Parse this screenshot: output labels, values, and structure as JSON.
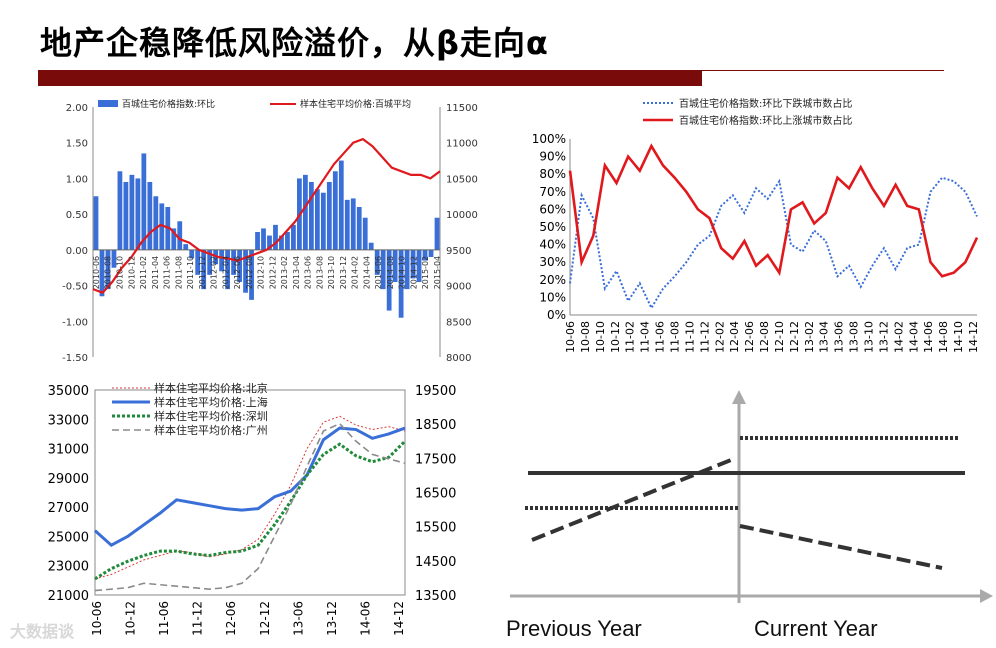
{
  "page": {
    "title": "地产企稳降低风险溢价，从β走向α",
    "watermark": "大数据谈"
  },
  "colors": {
    "accent": "#7a0b0b",
    "blue": "#3a6fd8",
    "red": "#e0191d",
    "green": "#1f8a3a",
    "gray": "#8a8a8a"
  },
  "chart_data": [
    {
      "type": "bar+line",
      "title": "",
      "legend": [
        "百城住宅价格指数:环比",
        "样本住宅平均价格:百城平均"
      ],
      "left_axis": {
        "ticks": [
          "2.00",
          "1.50",
          "1.00",
          "0.50",
          "0.00",
          "-0.50",
          "-1.00",
          "-1.50"
        ],
        "range": [
          -1.5,
          2.0
        ]
      },
      "right_axis": {
        "ticks": [
          "11500",
          "11000",
          "10500",
          "10000",
          "9500",
          "9000",
          "8500",
          "8000"
        ],
        "range": [
          8000,
          11500
        ]
      },
      "x_ticks": [
        "2010-06",
        "2010-08",
        "2010-10",
        "2010-12",
        "2011-02",
        "2011-04",
        "2011-06",
        "2011-08",
        "2011-10",
        "2011-12",
        "2012-02",
        "2012-04",
        "2012-06",
        "2012-08",
        "2012-10",
        "2012-12",
        "2013-02",
        "2013-04",
        "2013-06",
        "2013-08",
        "2013-10",
        "2013-12",
        "2014-02",
        "2014-04",
        "2014-06",
        "2014-08",
        "2014-10",
        "2014-12",
        "2015-02",
        "2015-04"
      ],
      "bar_values": [
        0.75,
        -0.65,
        -0.55,
        -0.25,
        1.1,
        0.95,
        1.05,
        1.0,
        1.35,
        0.95,
        0.75,
        0.65,
        0.6,
        0.3,
        0.4,
        0.08,
        -0.12,
        -0.35,
        -0.55,
        -0.35,
        -0.2,
        -0.3,
        -0.55,
        -0.35,
        -0.45,
        -0.6,
        -0.7,
        0.25,
        0.3,
        0.2,
        0.35,
        0.2,
        0.25,
        0.35,
        1.0,
        1.05,
        0.95,
        0.85,
        0.8,
        0.95,
        1.1,
        1.25,
        0.7,
        0.72,
        0.6,
        0.45,
        0.1,
        -0.35,
        -0.55,
        -0.85,
        -0.45,
        -0.95,
        -0.55,
        -0.4,
        -0.45,
        -0.15,
        -0.1,
        0.45
      ],
      "line_values": [
        8950,
        8900,
        9050,
        9250,
        9400,
        9600,
        9750,
        9850,
        9800,
        9650,
        9600,
        9500,
        9450,
        9400,
        9380,
        9350,
        9400,
        9450,
        9500,
        9600,
        9750,
        9900,
        10100,
        10300,
        10500,
        10700,
        10850,
        11000,
        11050,
        10950,
        10800,
        10650,
        10600,
        10550,
        10550,
        10500,
        10600
      ]
    },
    {
      "type": "line",
      "legend": [
        "百城住宅价格指数:环比下跌城市数占比",
        "百城住宅价格指数:环比上涨城市数占比"
      ],
      "y_ticks": [
        "100%",
        "90%",
        "80%",
        "70%",
        "60%",
        "50%",
        "40%",
        "30%",
        "20%",
        "10%",
        "0%"
      ],
      "ylim": [
        0,
        100
      ],
      "x_ticks": [
        "10-06",
        "10-08",
        "10-10",
        "10-12",
        "11-02",
        "11-04",
        "11-06",
        "11-08",
        "11-10",
        "11-12",
        "12-02",
        "12-04",
        "12-06",
        "12-08",
        "12-10",
        "12-12",
        "13-02",
        "13-04",
        "13-06",
        "13-08",
        "13-10",
        "13-12",
        "14-02",
        "14-04",
        "14-06",
        "14-08",
        "14-10",
        "14-12"
      ],
      "series": [
        {
          "name": "百城住宅价格指数:环比下跌城市数占比",
          "values": [
            18,
            68,
            55,
            15,
            25,
            8,
            18,
            4,
            15,
            22,
            30,
            40,
            45,
            62,
            68,
            58,
            72,
            66,
            76,
            40,
            36,
            48,
            42,
            22,
            28,
            16,
            28,
            38,
            26,
            38,
            40,
            70,
            78,
            76,
            70,
            56
          ]
        },
        {
          "name": "百城住宅价格指数:环比上涨城市数占比",
          "values": [
            82,
            30,
            45,
            85,
            75,
            90,
            82,
            96,
            85,
            78,
            70,
            60,
            55,
            38,
            32,
            42,
            28,
            34,
            24,
            60,
            64,
            52,
            58,
            78,
            72,
            84,
            72,
            62,
            74,
            62,
            60,
            30,
            22,
            24,
            30,
            44
          ]
        }
      ]
    },
    {
      "type": "line",
      "legend": [
        "样本住宅平均价格:北京",
        "样本住宅平均价格:上海",
        "样本住宅平均价格:深圳",
        "样本住宅平均价格:广州"
      ],
      "left_axis": {
        "ticks": [
          "35000",
          "33000",
          "31000",
          "29000",
          "27000",
          "25000",
          "23000",
          "21000"
        ],
        "range": [
          21000,
          35000
        ]
      },
      "right_axis": {
        "ticks": [
          "19500",
          "18500",
          "17500",
          "16500",
          "15500",
          "14500",
          "13500"
        ],
        "range": [
          13500,
          19500
        ]
      },
      "x_ticks": [
        "10-06",
        "10-12",
        "11-06",
        "11-12",
        "12-06",
        "12-12",
        "13-06",
        "13-12",
        "14-06",
        "14-12"
      ],
      "series": [
        {
          "name": "样本住宅平均价格:北京",
          "values": [
            22100,
            22400,
            22900,
            23400,
            23700,
            24000,
            23900,
            23600,
            23800,
            24100,
            24800,
            26500,
            28500,
            31000,
            32800,
            33200,
            32600,
            32300,
            32500,
            32200
          ]
        },
        {
          "name": "样本住宅平均价格:上海",
          "values": [
            25400,
            24400,
            25000,
            25800,
            26600,
            27500,
            27300,
            27100,
            26900,
            26800,
            26900,
            27700,
            28100,
            29200,
            31600,
            32400,
            32300,
            31700,
            32000,
            32400
          ]
        },
        {
          "name": "样本住宅平均价格:深圳",
          "values": [
            22100,
            22800,
            23300,
            23700,
            24000,
            24000,
            23800,
            23700,
            23900,
            24000,
            24400,
            25800,
            27400,
            29200,
            30600,
            31300,
            30500,
            30100,
            30400,
            31500
          ]
        },
        {
          "name": "样本住宅平均价格:广州",
          "values": [
            21300,
            21400,
            21500,
            21800,
            21700,
            21600,
            21500,
            21400,
            21500,
            21800,
            22800,
            25000,
            27200,
            29800,
            32200,
            32700,
            31500,
            30600,
            30300,
            30000
          ]
        }
      ]
    },
    {
      "type": "diagram",
      "x_labels": [
        "Previous Year",
        "Current Year"
      ]
    }
  ]
}
